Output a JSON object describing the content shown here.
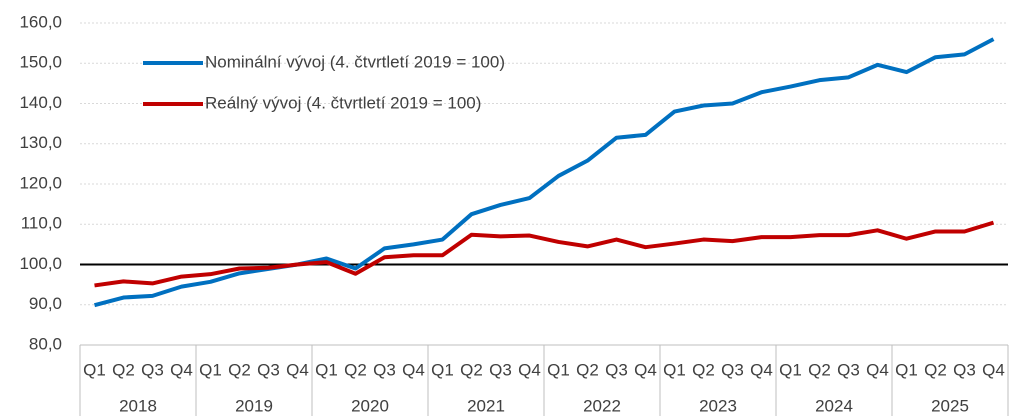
{
  "chart_data": {
    "type": "line",
    "categories": [
      "Q1",
      "Q2",
      "Q3",
      "Q4",
      "Q1",
      "Q2",
      "Q3",
      "Q4",
      "Q1",
      "Q2",
      "Q3",
      "Q4",
      "Q1",
      "Q2",
      "Q3",
      "Q4",
      "Q1",
      "Q2",
      "Q3",
      "Q4",
      "Q1",
      "Q2",
      "Q3",
      "Q4",
      "Q1",
      "Q2",
      "Q3",
      "Q4",
      "Q1",
      "Q2",
      "Q3",
      "Q4"
    ],
    "years": [
      "2018",
      "2019",
      "2020",
      "2021",
      "2022",
      "2023",
      "2024",
      "2025"
    ],
    "series": [
      {
        "name": "Nominální vývoj (4. čtvrtletí 2019 = 100)",
        "color": "#0070c0",
        "values": [
          89.9,
          91.8,
          92.2,
          94.5,
          95.7,
          97.8,
          98.9,
          100.0,
          101.5,
          99.0,
          104.0,
          105.0,
          106.2,
          112.5,
          114.8,
          116.5,
          122.0,
          125.8,
          131.5,
          132.2,
          138.0,
          139.5,
          140.0,
          142.8,
          144.2,
          145.8,
          146.5,
          149.6,
          147.8,
          151.5,
          152.2,
          156.0
        ]
      },
      {
        "name": "Reálný vývoj (4. čtvrtletí 2019 = 100)",
        "color": "#c00000",
        "values": [
          94.8,
          95.8,
          95.3,
          97.0,
          97.6,
          99.0,
          99.2,
          100.0,
          100.6,
          97.7,
          101.8,
          102.3,
          102.3,
          107.4,
          107.0,
          107.2,
          105.6,
          104.5,
          106.2,
          104.3,
          105.2,
          106.2,
          105.8,
          106.8,
          106.8,
          107.3,
          107.3,
          108.5,
          106.4,
          108.2,
          108.2,
          110.4
        ]
      }
    ],
    "reference_line": 100,
    "ylim": [
      80,
      160
    ],
    "yticks": [
      {
        "value": 80,
        "label": "80,0"
      },
      {
        "value": 90,
        "label": "90,0"
      },
      {
        "value": 100,
        "label": "100,0"
      },
      {
        "value": 110,
        "label": "110,0"
      },
      {
        "value": 120,
        "label": "120,0"
      },
      {
        "value": 130,
        "label": "130,0"
      },
      {
        "value": 140,
        "label": "140,0"
      },
      {
        "value": 150,
        "label": "150,0"
      },
      {
        "value": 160,
        "label": "160,0"
      }
    ],
    "grid": true,
    "legend": "upper left"
  }
}
